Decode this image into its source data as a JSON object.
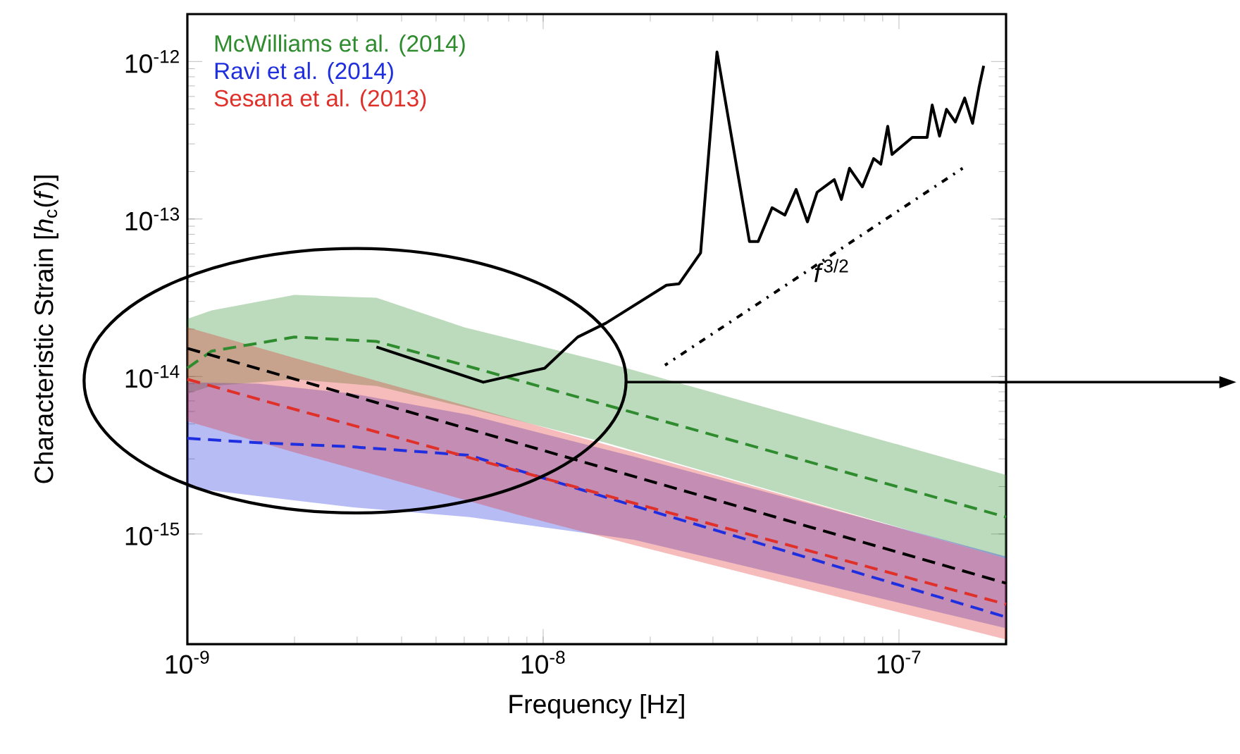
{
  "chart_data": {
    "type": "line",
    "log": "xy",
    "xlabel": "Frequency [Hz]",
    "ylabel": "Characteristic Strain [*h*$_{c}$(*f*)]",
    "xlim": [
      1e-09,
      2e-07
    ],
    "ylim": [
      2e-16,
      2e-12
    ],
    "xticks": [
      {
        "value": 1e-09,
        "label": "10$^{-9}$"
      },
      {
        "value": 1e-08,
        "label": "10$^{-8}$"
      },
      {
        "value": 1e-07,
        "label": "10$^{-7}$"
      }
    ],
    "yticks": [
      {
        "value": 1e-15,
        "label": "10$^{-15}$"
      },
      {
        "value": 1e-14,
        "label": "10$^{-14}$"
      },
      {
        "value": 1e-13,
        "label": "10$^{-13}$"
      },
      {
        "value": 1e-12,
        "label": "10$^{-12}$"
      }
    ],
    "grid": false,
    "legend": "top left",
    "marker": "none",
    "series": [
      {
        "name": "McWilliams et al. (2014)",
        "color": "#2e8b2e",
        "line_style": "dashed",
        "x": [
          1e-09,
          1.17e-09,
          2e-09,
          3.4e-09,
          6e-09,
          1.5e-08,
          2e-07
        ],
        "values": [
          1.13e-14,
          1.45e-14,
          1.78e-14,
          1.67e-14,
          1.18e-14,
          6.6e-15,
          1.28e-15
        ],
        "upper": [
          2.32e-14,
          2.63e-14,
          3.3e-14,
          3.16e-14,
          2.05e-14,
          1.23e-14,
          2.37e-15
        ],
        "lower": [
          7.8e-15,
          8.7e-15,
          9.6e-15,
          8.7e-15,
          6.4e-15,
          3.8e-15,
          7e-16
        ]
      },
      {
        "name": "Ravi et al. (2014)",
        "color": "#1f2fe0",
        "line_style": "dashed",
        "x": [
          1e-09,
          1.58e-09,
          2.9e-09,
          6.2e-09,
          1.8e-08,
          2e-07
        ],
        "values": [
          4.05e-15,
          3.8e-15,
          3.58e-15,
          3.16e-15,
          1.51e-15,
          2.97e-16
        ],
        "upper": [
          9.2e-15,
          9e-15,
          7.8e-15,
          5.7e-15,
          3.1e-15,
          7.2e-16
        ],
        "lower": [
          1.97e-15,
          1.74e-15,
          1.48e-15,
          1.28e-15,
          9.2e-16,
          2.52e-16
        ]
      },
      {
        "name": "Sesana et al. (2013)",
        "color": "#e0302a",
        "line_style": "dashed",
        "x": [
          1e-09,
          2e-09,
          8.45e-09,
          1.8e-08,
          2e-07
        ],
        "values": [
          9.6e-15,
          6.2e-15,
          2.52e-15,
          1.57e-15,
          3.58e-16
        ],
        "upper": [
          2.05e-14,
          1.31e-14,
          5.3e-15,
          3.3e-15,
          7e-16
        ],
        "lower": [
          5.2e-15,
          3.3e-15,
          1.33e-15,
          8.5e-16,
          2.14e-16
        ]
      },
      {
        "color": "#000000",
        "line_style": "dashed",
        "x": [
          1e-09,
          2e-07
        ],
        "values": [
          1.51e-14,
          4.87e-16
        ]
      },
      {
        "color": "#000000",
        "line_style": "solid",
        "x": [
          3.4e-09,
          6.79e-09,
          1.01e-08,
          1.25e-08,
          1.5e-08,
          2.22e-08,
          2.41e-08,
          2.77e-08,
          3.08e-08,
          3.8e-08,
          4.02e-08,
          4.4e-08,
          4.78e-08,
          5.14e-08,
          5.53e-08,
          5.89e-08,
          6.58e-08,
          6.89e-08,
          7.26e-08,
          7.89e-08,
          8.49e-08,
          8.89e-08,
          9.3e-08,
          9.56e-08,
          1.09e-07,
          1.2e-07,
          1.24e-07,
          1.3e-07,
          1.36e-07,
          1.44e-07,
          1.53e-07,
          1.61e-07,
          1.68e-07,
          1.73e-07
        ],
        "values": [
          1.54e-14,
          9.2e-15,
          1.13e-14,
          1.78e-14,
          2.18e-14,
          3.8e-14,
          3.88e-14,
          6.1e-14,
          1.15e-12,
          7.2e-14,
          7.2e-14,
          1.18e-13,
          1.06e-13,
          1.54e-13,
          9.6e-14,
          1.48e-13,
          1.78e-13,
          1.33e-13,
          2.1e-13,
          1.6e-13,
          2.42e-13,
          2.23e-13,
          3.88e-13,
          2.57e-13,
          3.3e-13,
          3.3e-13,
          5.29e-13,
          3.36e-13,
          4.97e-13,
          4.13e-13,
          5.86e-13,
          4.05e-13,
          6.9e-13,
          9.4e-13
        ]
      },
      {
        "color": "#000000",
        "line_style": "dotted",
        "x": [
          2.2e-08,
          1.51e-07
        ],
        "values": [
          1.18e-14,
          2.1e-13
        ]
      }
    ],
    "annotations": [
      "*f*$^{3/2}$"
    ]
  }
}
